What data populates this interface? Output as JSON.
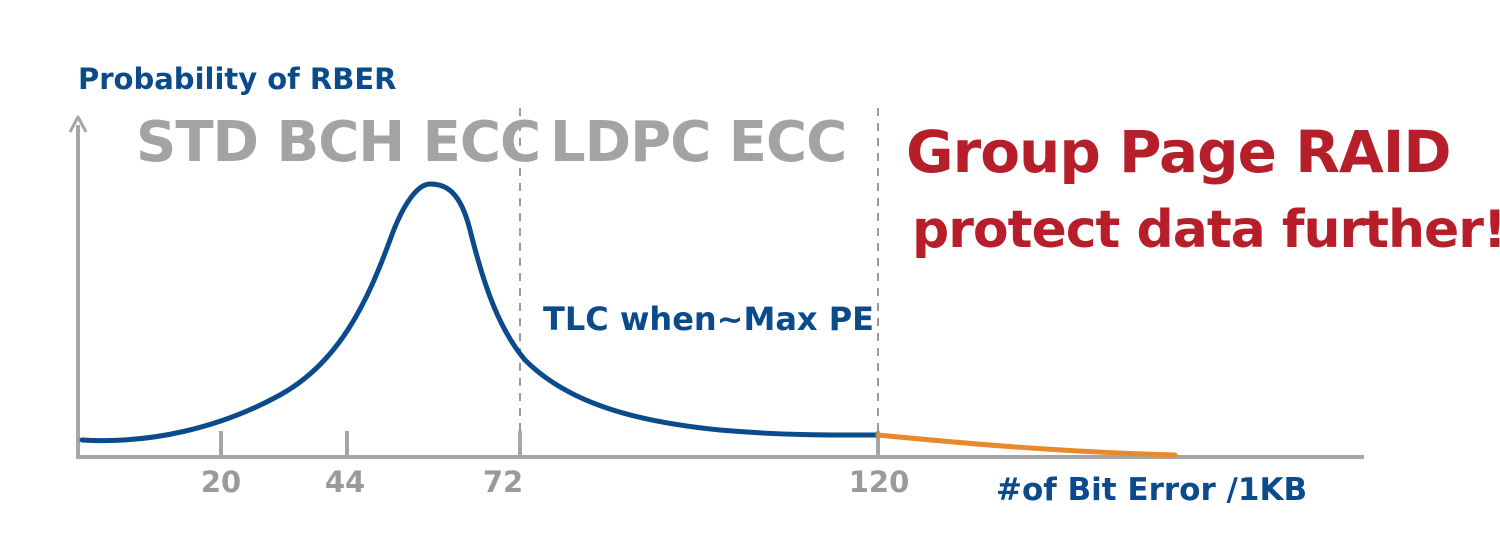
{
  "diagram": {
    "y_axis_label": "Probability of RBER",
    "x_axis_label": "#of Bit Error /1KB",
    "regions": [
      {
        "label": "STD BCH ECC"
      },
      {
        "label": "LDPC ECC"
      }
    ],
    "raid": {
      "title": "Group Page RAID",
      "subtitle": "protect data further!"
    },
    "curve_note": "TLC when~Max PE",
    "x_ticks": [
      "20",
      "44",
      "72",
      "120"
    ],
    "boundaries": [
      "72",
      "120"
    ],
    "colors": {
      "axis": "#a6a6a6",
      "curve": "#0b4a8b",
      "curve_tail": "#e8892e",
      "region_label": "#a3a3a3",
      "raid_text": "#b61f2a",
      "blue_text": "#0b4a8b",
      "divider": "#9a9a9a"
    }
  }
}
